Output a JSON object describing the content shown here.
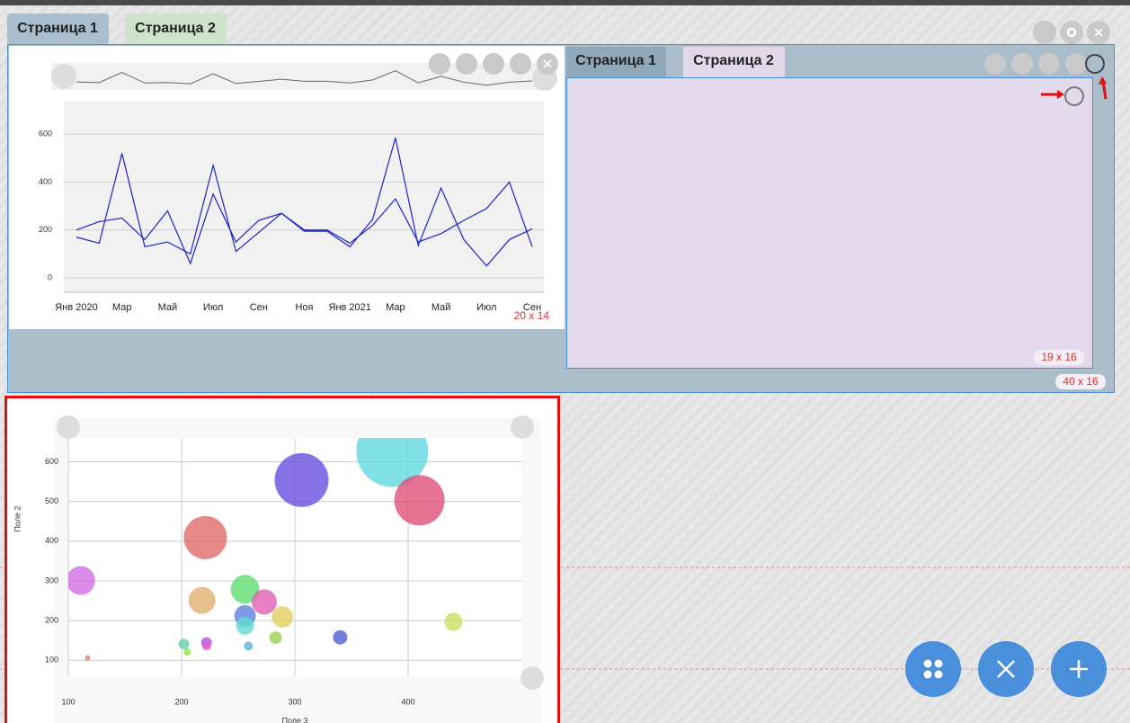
{
  "tabs": [
    "Страница 1",
    "Страница 2"
  ],
  "inner_tabs": [
    "Страница 1",
    "Страница 2"
  ],
  "size_labels": {
    "line_widget": "20 x 14",
    "inner_panel": "19 x 16",
    "tab_container": "40 x 16"
  },
  "chart_data": [
    {
      "type": "line",
      "categories": [
        "Янв 2020",
        null,
        "Мар",
        null,
        "Май",
        null,
        "Июл",
        null,
        "Сен",
        null,
        "Ноя",
        null,
        "Янв 2021",
        null,
        "Мар",
        null,
        "Май",
        null,
        "Июл",
        null,
        "Сен"
      ],
      "series": [
        {
          "color": "#1c22c8",
          "values": [
            170,
            145,
            520,
            130,
            150,
            100,
            470,
            110,
            190,
            270,
            195,
            195,
            130,
            245,
            585,
            135,
            375,
            160,
            50,
            160,
            205
          ]
        },
        {
          "color": "#1c22c8",
          "values": [
            200,
            235,
            250,
            160,
            280,
            60,
            350,
            150,
            240,
            270,
            200,
            200,
            145,
            220,
            330,
            150,
            185,
            240,
            290,
            400,
            130
          ]
        }
      ],
      "ylim": [
        -60,
        740
      ],
      "yticks": [
        0,
        200,
        400,
        600
      ],
      "grid": true
    },
    {
      "type": "bubble",
      "x_label": "Поле 3",
      "y_label": "Поле 2",
      "x": [
        111,
        117,
        221,
        218,
        202,
        205,
        222,
        222,
        256,
        256,
        256,
        259,
        273,
        289,
        283,
        306,
        340,
        386,
        410,
        440
      ],
      "values": [
        301,
        106,
        409,
        251,
        141,
        121,
        145,
        136,
        279,
        212,
        187,
        136,
        247,
        209,
        157,
        554,
        158,
        627,
        503,
        197
      ],
      "sizes": [
        16,
        3,
        24,
        15,
        6,
        4,
        6,
        5,
        16,
        12,
        10,
        5,
        14,
        12,
        7,
        30,
        8,
        40,
        28,
        10
      ],
      "colors": [
        "#d070e0",
        "#e08060",
        "#e06a6a",
        "#e0b070",
        "#60d0b0",
        "#90e040",
        "#b050e0",
        "#e060c0",
        "#60dd70",
        "#6080e0",
        "#60dcd0",
        "#60b0e0",
        "#e060b0",
        "#e0d060",
        "#a0d050",
        "#6a50e0",
        "#5060d0",
        "#60d8e0",
        "#e05078",
        "#c8e060"
      ],
      "xlim": [
        100,
        500
      ],
      "ylim": [
        60,
        660
      ],
      "xticks": [
        100,
        200,
        300,
        400
      ],
      "yticks": [
        100,
        200,
        300,
        400,
        500,
        600
      ],
      "grid": true
    }
  ]
}
